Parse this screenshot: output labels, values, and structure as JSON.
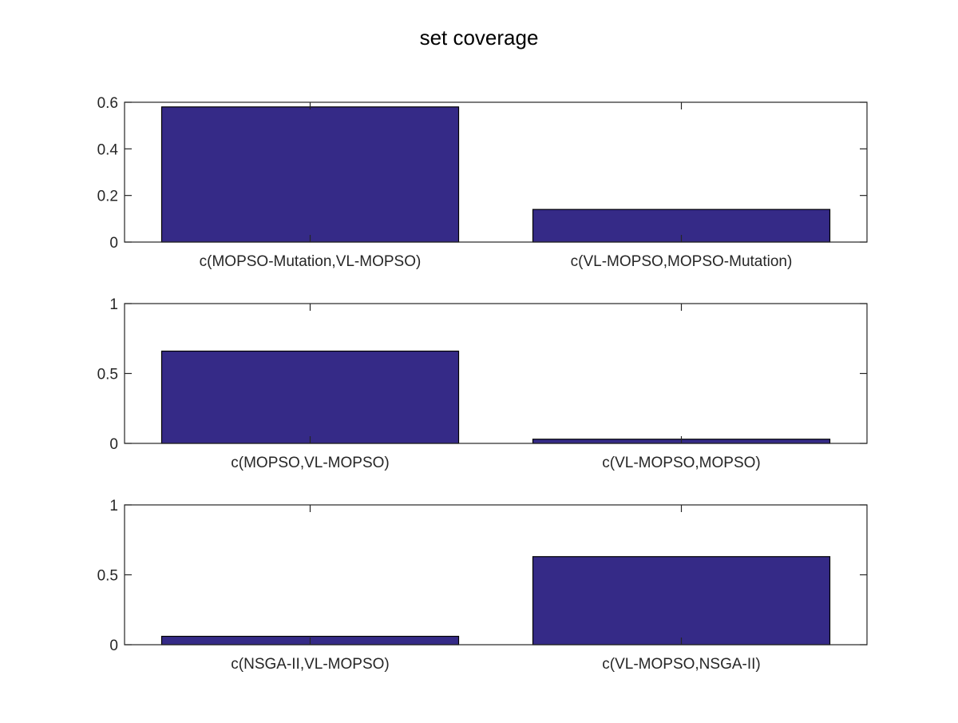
{
  "figure": {
    "title": "set coverage"
  },
  "colors": {
    "bar_fill": "#352a87",
    "axis": "#262626",
    "background": "#ffffff"
  },
  "chart_data": [
    {
      "type": "bar",
      "categories": [
        "c(MOPSO-Mutation,VL-MOPSO)",
        "c(VL-MOPSO,MOPSO-Mutation)"
      ],
      "values": [
        0.58,
        0.14
      ],
      "ylim": [
        0,
        0.6
      ],
      "yticks": [
        0,
        0.2,
        0.4,
        0.6
      ],
      "ytick_labels": [
        "0",
        "0.2",
        "0.4",
        "0.6"
      ],
      "title": "",
      "xlabel": "",
      "ylabel": "",
      "grid": false
    },
    {
      "type": "bar",
      "categories": [
        "c(MOPSO,VL-MOPSO)",
        "c(VL-MOPSO,MOPSO)"
      ],
      "values": [
        0.66,
        0.03
      ],
      "ylim": [
        0,
        1
      ],
      "yticks": [
        0,
        0.5,
        1
      ],
      "ytick_labels": [
        "0",
        "0.5",
        "1"
      ],
      "title": "",
      "xlabel": "",
      "ylabel": "",
      "grid": false
    },
    {
      "type": "bar",
      "categories": [
        "c(NSGA-II,VL-MOPSO)",
        "c(VL-MOPSO,NSGA-II)"
      ],
      "values": [
        0.06,
        0.63
      ],
      "ylim": [
        0,
        1
      ],
      "yticks": [
        0,
        0.5,
        1
      ],
      "ytick_labels": [
        "0",
        "0.5",
        "1"
      ],
      "title": "",
      "xlabel": "",
      "ylabel": "",
      "grid": false
    }
  ]
}
